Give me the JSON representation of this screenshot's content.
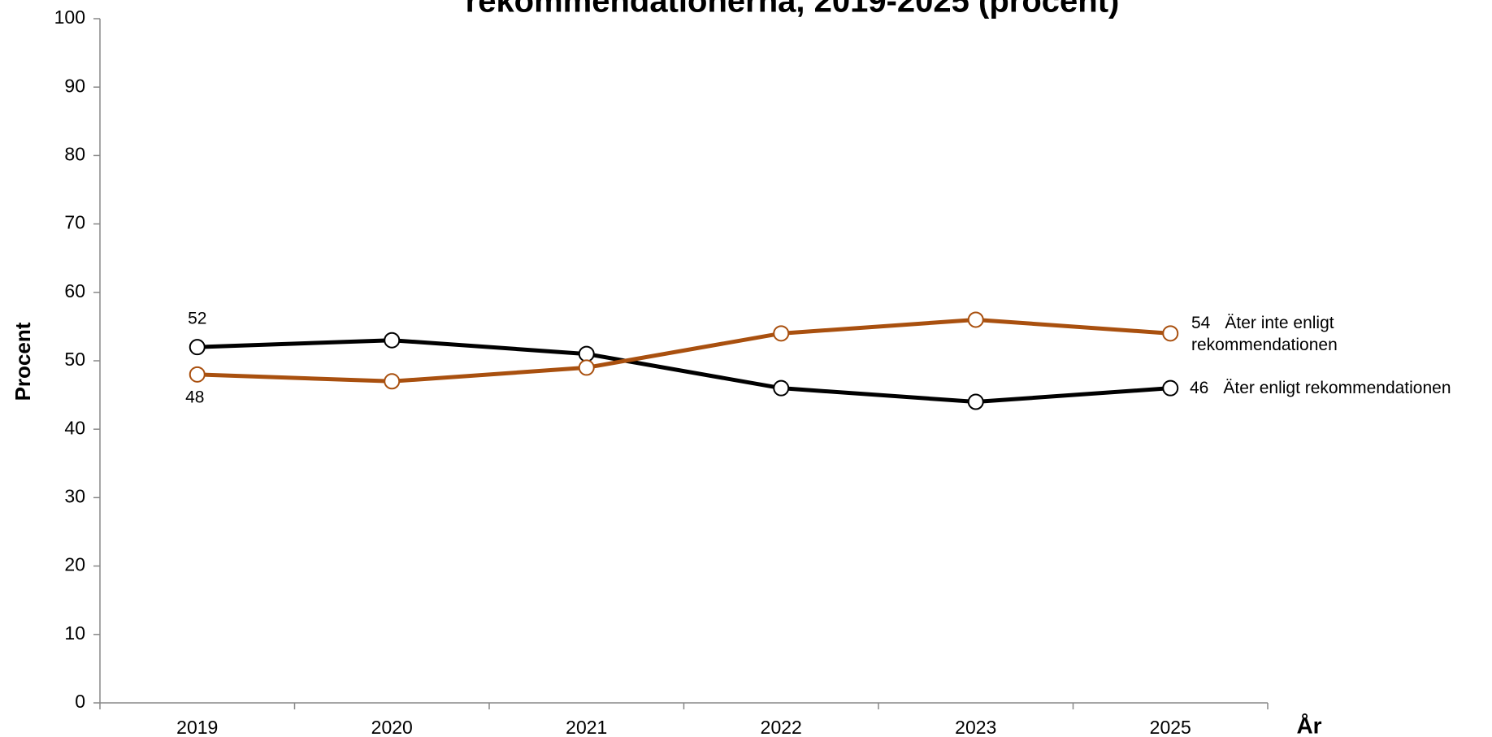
{
  "chart_data": {
    "type": "line",
    "title": "rekommendationerna, 2019-2025 (procent)",
    "x_label": "År",
    "y_label": "Procent",
    "categories": [
      "2019",
      "2020",
      "2021",
      "2022",
      "2023",
      "2025"
    ],
    "series": [
      {
        "name": "Äter enligt rekommendationen",
        "color": "#000000",
        "values": [
          52,
          53,
          51,
          46,
          44,
          46
        ]
      },
      {
        "name": "Äter inte enligt rekommendationen",
        "color": "#a9500f",
        "values": [
          48,
          47,
          49,
          54,
          56,
          54
        ]
      }
    ],
    "ylim": [
      0,
      100
    ],
    "yticks": [
      0,
      10,
      20,
      30,
      40,
      50,
      60,
      70,
      80,
      90,
      100
    ]
  }
}
